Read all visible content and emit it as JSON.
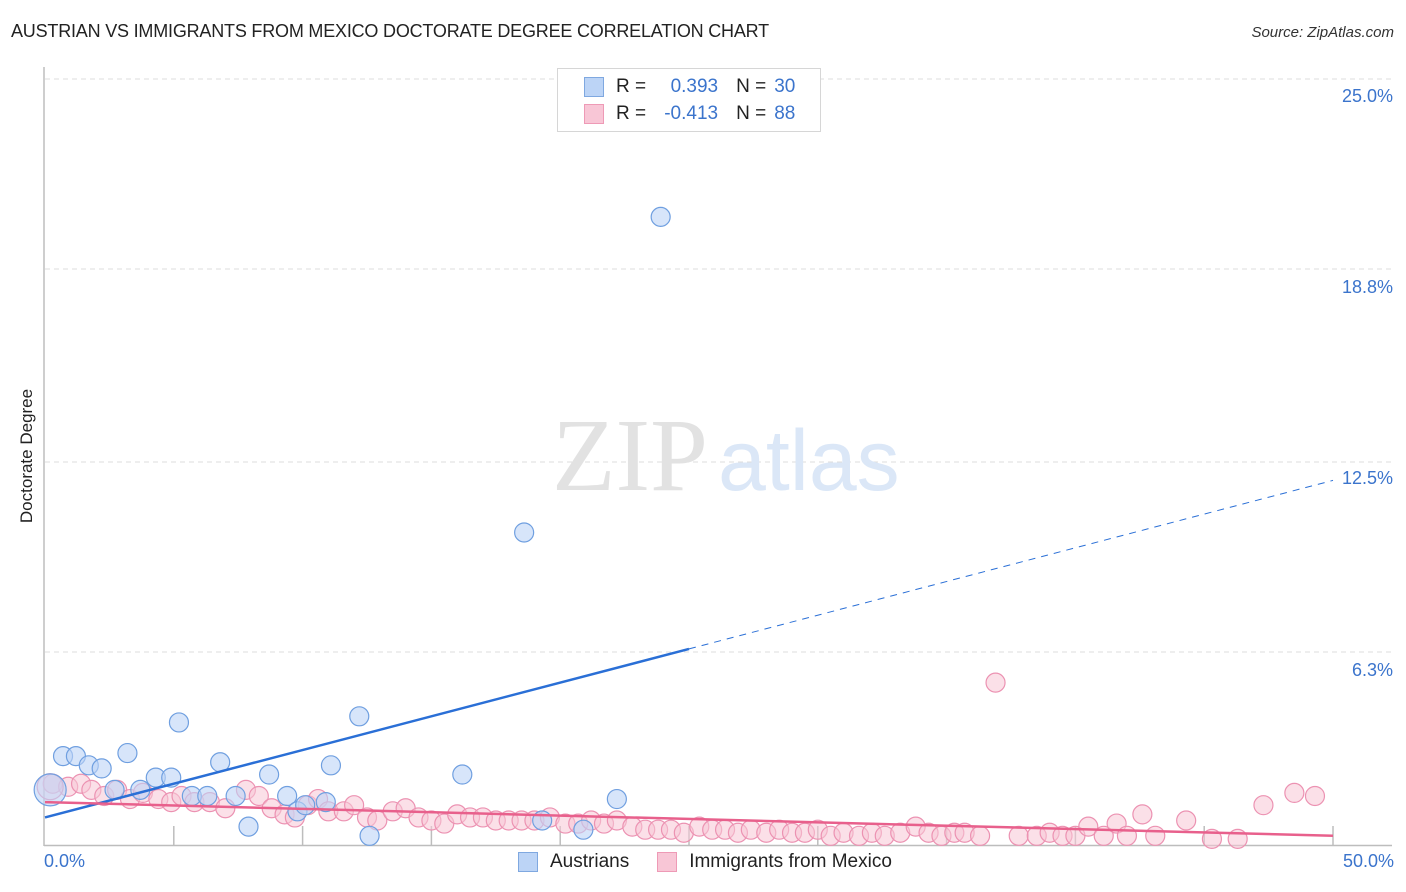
{
  "header": {
    "title": "AUSTRIAN VS IMMIGRANTS FROM MEXICO DOCTORATE DEGREE CORRELATION CHART",
    "source": "Source: ZipAtlas.com"
  },
  "watermark": {
    "zip": "ZIP",
    "atlas": "atlas"
  },
  "legend": {
    "rows": [
      {
        "r_label": "R =",
        "r_value": "0.393",
        "n_label": "N =",
        "n_value": "30",
        "color": "#bcd4f6"
      },
      {
        "r_label": "R =",
        "r_value": "-0.413",
        "n_label": "N =",
        "n_value": "88",
        "color": "#f8c6d6"
      }
    ]
  },
  "bottom_legend": [
    {
      "label": "Austrians",
      "color": "#bcd4f6"
    },
    {
      "label": "Immigrants from Mexico",
      "color": "#f8c6d6"
    }
  ],
  "axes": {
    "ylabel": "Doctorate Degree",
    "y_ticks": [
      "25.0%",
      "18.8%",
      "12.5%",
      "6.3%"
    ],
    "x_ticks": [
      "0.0%",
      "50.0%"
    ]
  },
  "colors": {
    "blue": "#2a6fd6",
    "blue_fill": "#bcd4f6",
    "blue_stroke": "#6f9fe0",
    "pink": "#e8608c",
    "pink_fill": "#f8c6d6",
    "pink_stroke": "#ec92b2",
    "axis_label": "#3b74cc"
  },
  "chart_data": {
    "type": "scatter",
    "title": "AUSTRIAN VS IMMIGRANTS FROM MEXICO DOCTORATE DEGREE CORRELATION CHART",
    "xlabel": "",
    "ylabel": "Doctorate Degree",
    "xlim": [
      0,
      50
    ],
    "ylim": [
      0,
      25
    ],
    "x_ticks": [
      0,
      50
    ],
    "y_ticks": [
      6.3,
      12.5,
      18.8,
      25.0
    ],
    "grid": "horizontal dashed",
    "legend_position": "top-center and bottom",
    "series": [
      {
        "name": "Austrians",
        "R": 0.393,
        "N": 30,
        "color": "#bcd4f6",
        "points": [
          [
            0.2,
            1.8
          ],
          [
            0.7,
            2.9
          ],
          [
            1.2,
            2.9
          ],
          [
            1.7,
            2.6
          ],
          [
            2.2,
            2.5
          ],
          [
            3.2,
            3.0
          ],
          [
            2.7,
            1.8
          ],
          [
            3.7,
            1.8
          ],
          [
            4.3,
            2.2
          ],
          [
            4.9,
            2.2
          ],
          [
            5.2,
            4.0
          ],
          [
            5.7,
            1.6
          ],
          [
            6.3,
            1.6
          ],
          [
            6.8,
            2.7
          ],
          [
            7.4,
            1.6
          ],
          [
            7.9,
            0.6
          ],
          [
            8.7,
            2.3
          ],
          [
            9.4,
            1.6
          ],
          [
            9.8,
            1.1
          ],
          [
            10.1,
            1.3
          ],
          [
            10.9,
            1.4
          ],
          [
            11.1,
            2.6
          ],
          [
            12.2,
            4.2
          ],
          [
            12.6,
            0.3
          ],
          [
            16.2,
            2.3
          ],
          [
            18.6,
            10.2
          ],
          [
            19.3,
            0.8
          ],
          [
            20.9,
            0.5
          ],
          [
            22.2,
            1.5
          ],
          [
            23.9,
            20.5
          ]
        ],
        "trend": {
          "x0": 0,
          "y0": 0.9,
          "x1": 50,
          "y1": 11.9,
          "solid_until_x": 25
        }
      },
      {
        "name": "Immigrants from Mexico",
        "R": -0.413,
        "N": 88,
        "color": "#f8c6d6",
        "points": [
          [
            0.3,
            2.0
          ],
          [
            0.9,
            1.9
          ],
          [
            1.4,
            2.0
          ],
          [
            1.8,
            1.8
          ],
          [
            2.3,
            1.6
          ],
          [
            2.8,
            1.8
          ],
          [
            3.3,
            1.5
          ],
          [
            3.8,
            1.7
          ],
          [
            4.4,
            1.5
          ],
          [
            4.9,
            1.4
          ],
          [
            5.3,
            1.6
          ],
          [
            5.8,
            1.4
          ],
          [
            6.4,
            1.4
          ],
          [
            7.0,
            1.2
          ],
          [
            7.8,
            1.8
          ],
          [
            8.3,
            1.6
          ],
          [
            8.8,
            1.2
          ],
          [
            9.3,
            1.0
          ],
          [
            9.7,
            0.9
          ],
          [
            10.2,
            1.3
          ],
          [
            10.6,
            1.5
          ],
          [
            11.0,
            1.1
          ],
          [
            11.6,
            1.1
          ],
          [
            12.0,
            1.3
          ],
          [
            12.5,
            0.9
          ],
          [
            12.9,
            0.8
          ],
          [
            13.5,
            1.1
          ],
          [
            14.0,
            1.2
          ],
          [
            14.5,
            0.9
          ],
          [
            15.0,
            0.8
          ],
          [
            15.5,
            0.7
          ],
          [
            16.0,
            1.0
          ],
          [
            16.5,
            0.9
          ],
          [
            17.0,
            0.9
          ],
          [
            17.5,
            0.8
          ],
          [
            18.0,
            0.8
          ],
          [
            18.5,
            0.8
          ],
          [
            19.0,
            0.8
          ],
          [
            19.6,
            0.9
          ],
          [
            20.2,
            0.7
          ],
          [
            20.7,
            0.7
          ],
          [
            21.2,
            0.8
          ],
          [
            21.7,
            0.7
          ],
          [
            22.2,
            0.8
          ],
          [
            22.8,
            0.6
          ],
          [
            23.3,
            0.5
          ],
          [
            23.8,
            0.5
          ],
          [
            24.3,
            0.5
          ],
          [
            24.8,
            0.4
          ],
          [
            25.4,
            0.6
          ],
          [
            25.9,
            0.5
          ],
          [
            26.4,
            0.5
          ],
          [
            26.9,
            0.4
          ],
          [
            27.4,
            0.5
          ],
          [
            28.0,
            0.4
          ],
          [
            28.5,
            0.5
          ],
          [
            29.0,
            0.4
          ],
          [
            29.5,
            0.4
          ],
          [
            30.0,
            0.5
          ],
          [
            30.5,
            0.3
          ],
          [
            31.0,
            0.4
          ],
          [
            31.6,
            0.3
          ],
          [
            32.1,
            0.4
          ],
          [
            32.6,
            0.3
          ],
          [
            33.2,
            0.4
          ],
          [
            33.8,
            0.6
          ],
          [
            34.3,
            0.4
          ],
          [
            34.8,
            0.3
          ],
          [
            35.3,
            0.4
          ],
          [
            35.7,
            0.4
          ],
          [
            36.9,
            5.3
          ],
          [
            36.3,
            0.3
          ],
          [
            37.8,
            0.3
          ],
          [
            38.5,
            0.3
          ],
          [
            39.0,
            0.4
          ],
          [
            39.5,
            0.3
          ],
          [
            40.0,
            0.3
          ],
          [
            40.5,
            0.6
          ],
          [
            41.1,
            0.3
          ],
          [
            41.6,
            0.7
          ],
          [
            42.0,
            0.3
          ],
          [
            42.6,
            1.0
          ],
          [
            43.1,
            0.3
          ],
          [
            44.3,
            0.8
          ],
          [
            45.3,
            0.2
          ],
          [
            46.3,
            0.2
          ],
          [
            47.3,
            1.3
          ],
          [
            48.5,
            1.7
          ],
          [
            49.3,
            1.6
          ]
        ],
        "trend": {
          "x0": 0,
          "y0": 1.4,
          "x1": 50,
          "y1": 0.3
        }
      }
    ]
  }
}
